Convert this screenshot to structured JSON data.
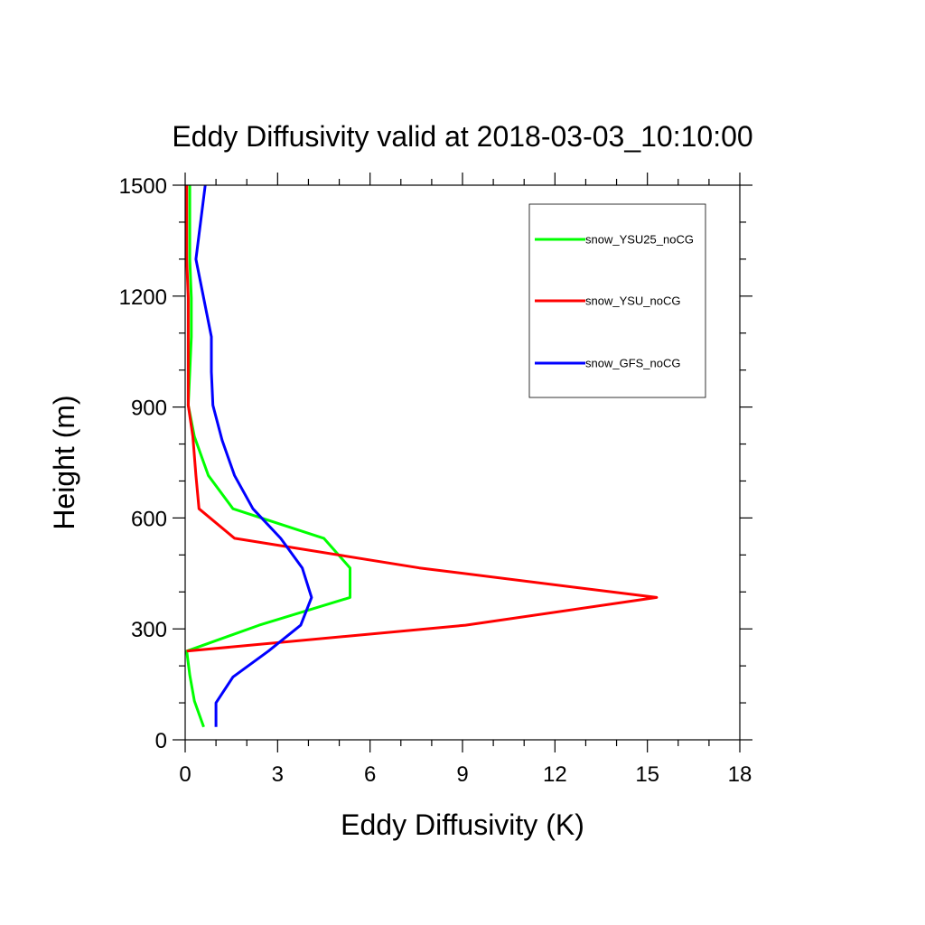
{
  "chart_data": {
    "type": "line",
    "title": "Eddy Diffusivity valid at 2018-03-03_10:10:00",
    "xlabel": "Eddy Diffusivity (K)",
    "ylabel": "Height (m)",
    "xlim": [
      0,
      18
    ],
    "ylim": [
      0,
      1500
    ],
    "x_ticks": [
      0,
      3,
      6,
      9,
      12,
      15,
      18
    ],
    "x_tick_labels": [
      "0",
      "3",
      "6",
      "9",
      "12",
      "15",
      "18"
    ],
    "y_ticks": [
      0,
      300,
      600,
      900,
      1200,
      1500
    ],
    "y_tick_labels": [
      "0",
      "300",
      "600",
      "900",
      "1200",
      "1500"
    ],
    "grid": false,
    "legend_position": "top-right",
    "series": [
      {
        "name": "snow_YSU25_noCG",
        "color": "#00ff00",
        "points": [
          [
            0.6,
            35
          ],
          [
            0.3,
            105
          ],
          [
            0.15,
            175
          ],
          [
            0.05,
            240
          ],
          [
            2.4,
            310
          ],
          [
            5.35,
            385
          ],
          [
            5.35,
            465
          ],
          [
            4.5,
            545
          ],
          [
            1.55,
            625
          ],
          [
            0.75,
            715
          ],
          [
            0.3,
            820
          ],
          [
            0.1,
            905
          ],
          [
            0.15,
            995
          ],
          [
            0.2,
            1090
          ],
          [
            0.2,
            1195
          ],
          [
            0.15,
            1300
          ],
          [
            0.15,
            1395
          ],
          [
            0.15,
            1500
          ]
        ]
      },
      {
        "name": "snow_YSU_noCG",
        "color": "#ff0000",
        "points": [
          [
            0.05,
            240
          ],
          [
            9.1,
            310
          ],
          [
            15.3,
            385
          ],
          [
            7.6,
            465
          ],
          [
            1.6,
            545
          ],
          [
            0.45,
            625
          ],
          [
            0.35,
            715
          ],
          [
            0.25,
            820
          ],
          [
            0.1,
            905
          ],
          [
            0.1,
            995
          ],
          [
            0.1,
            1090
          ],
          [
            0.1,
            1195
          ],
          [
            0.05,
            1300
          ],
          [
            0.05,
            1395
          ],
          [
            0.05,
            1500
          ]
        ]
      },
      {
        "name": "snow_GFS_noCG",
        "color": "#0000ff",
        "points": [
          [
            1.0,
            35
          ],
          [
            1.0,
            100
          ],
          [
            1.55,
            170
          ],
          [
            2.7,
            240
          ],
          [
            3.75,
            310
          ],
          [
            4.1,
            385
          ],
          [
            3.8,
            465
          ],
          [
            3.1,
            545
          ],
          [
            2.2,
            625
          ],
          [
            1.6,
            715
          ],
          [
            1.2,
            810
          ],
          [
            0.9,
            905
          ],
          [
            0.85,
            995
          ],
          [
            0.85,
            1090
          ],
          [
            0.35,
            1300
          ],
          [
            0.65,
            1500
          ]
        ]
      }
    ]
  }
}
